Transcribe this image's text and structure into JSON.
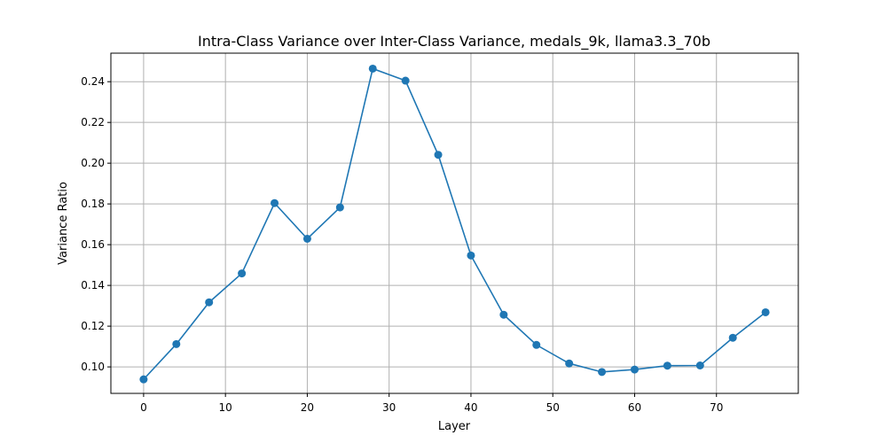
{
  "chart_data": {
    "type": "line",
    "title": "Intra-Class Variance over Inter-Class Variance, medals_9k, llama3.3_70b",
    "xlabel": "Layer",
    "ylabel": "Variance Ratio",
    "x": [
      0,
      4,
      8,
      12,
      16,
      20,
      24,
      28,
      32,
      36,
      40,
      44,
      48,
      52,
      56,
      60,
      64,
      68,
      72,
      76
    ],
    "series": [
      {
        "values": [
          0.0939,
          0.1112,
          0.1317,
          0.1459,
          0.1804,
          0.1629,
          0.1783,
          0.2464,
          0.2405,
          0.2041,
          0.1547,
          0.1256,
          0.1108,
          0.1017,
          0.0975,
          0.0987,
          0.1006,
          0.1007,
          0.1143,
          0.1268
        ],
        "color": "#1f77b4",
        "marker": "circle"
      }
    ],
    "xlim": [
      -4,
      80
    ],
    "ylim": [
      0.087,
      0.254
    ],
    "xticks": [
      "0",
      "10",
      "20",
      "30",
      "40",
      "50",
      "60",
      "70"
    ],
    "yticks": [
      "0.10",
      "0.12",
      "0.14",
      "0.16",
      "0.18",
      "0.20",
      "0.22",
      "0.24"
    ],
    "grid": true
  }
}
